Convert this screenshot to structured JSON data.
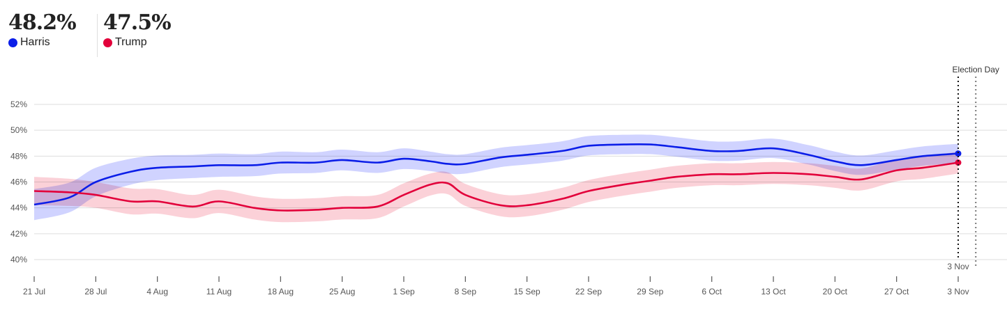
{
  "header": {
    "candidates": [
      {
        "name": "Harris",
        "value": "48.2%",
        "color": "#0b1ee8"
      },
      {
        "name": "Trump",
        "value": "47.5%",
        "color": "#e2003a"
      }
    ]
  },
  "chart_data": {
    "type": "line",
    "ylim": [
      40,
      52
    ],
    "yticks": [
      40,
      42,
      44,
      46,
      48,
      50,
      52
    ],
    "ytick_labels": [
      "40%",
      "42%",
      "44%",
      "46%",
      "48%",
      "50%",
      "52%"
    ],
    "xlim": [
      "21 Jul",
      "10 Nov"
    ],
    "xticks": [
      "21 Jul",
      "28 Jul",
      "4 Aug",
      "11 Aug",
      "18 Aug",
      "25 Aug",
      "1 Sep",
      "8 Sep",
      "15 Sep",
      "22 Sep",
      "29 Sep",
      "6 Oct",
      "13 Oct",
      "20 Oct",
      "27 Oct",
      "3 Nov"
    ],
    "grid": true,
    "annotations": [
      {
        "label": "Election Day",
        "date": "5 Nov",
        "style": "dotted"
      },
      {
        "label": "3 Nov",
        "date": "3 Nov",
        "style": "dotted"
      }
    ],
    "x": [
      "21 Jul",
      "25 Jul",
      "28 Jul",
      "1 Aug",
      "4 Aug",
      "8 Aug",
      "11 Aug",
      "15 Aug",
      "18 Aug",
      "22 Aug",
      "25 Aug",
      "29 Aug",
      "1 Sep",
      "4 Sep",
      "6 Sep",
      "8 Sep",
      "12 Sep",
      "15 Sep",
      "19 Sep",
      "22 Sep",
      "26 Sep",
      "29 Sep",
      "2 Oct",
      "6 Oct",
      "9 Oct",
      "13 Oct",
      "17 Oct",
      "20 Oct",
      "23 Oct",
      "27 Oct",
      "30 Oct",
      "3 Nov"
    ],
    "series": [
      {
        "name": "Harris",
        "color": "#0b1ee8",
        "band_color": "#c8ccff",
        "values": [
          44.25,
          44.8,
          46.0,
          46.8,
          47.1,
          47.2,
          47.3,
          47.3,
          47.5,
          47.5,
          47.7,
          47.5,
          47.8,
          47.6,
          47.4,
          47.4,
          47.9,
          48.1,
          48.4,
          48.8,
          48.9,
          48.9,
          48.7,
          48.4,
          48.4,
          48.6,
          48.1,
          47.6,
          47.3,
          47.7,
          48.0,
          48.2
        ],
        "margin": [
          1.2,
          1.15,
          1.1,
          1.0,
          0.95,
          0.9,
          0.9,
          0.85,
          0.85,
          0.8,
          0.8,
          0.8,
          0.8,
          0.75,
          0.75,
          0.75,
          0.75,
          0.75,
          0.75,
          0.75,
          0.75,
          0.75,
          0.75,
          0.75,
          0.75,
          0.75,
          0.75,
          0.75,
          0.75,
          0.75,
          0.75,
          0.75
        ]
      },
      {
        "name": "Trump",
        "color": "#e2003a",
        "band_color": "#fbc9d1",
        "values": [
          45.3,
          45.2,
          45.0,
          44.5,
          44.5,
          44.1,
          44.5,
          44.0,
          43.8,
          43.85,
          44.0,
          44.1,
          45.0,
          45.8,
          45.9,
          45.0,
          44.2,
          44.2,
          44.7,
          45.3,
          45.8,
          46.1,
          46.4,
          46.6,
          46.6,
          46.7,
          46.6,
          46.4,
          46.2,
          46.9,
          47.1,
          47.5
        ],
        "margin": [
          1.1,
          1.05,
          1.0,
          1.0,
          0.95,
          0.9,
          0.9,
          0.9,
          0.9,
          0.9,
          0.9,
          0.9,
          0.9,
          0.85,
          0.85,
          0.85,
          0.85,
          0.85,
          0.85,
          0.85,
          0.85,
          0.85,
          0.85,
          0.85,
          0.85,
          0.85,
          0.85,
          0.85,
          0.85,
          0.85,
          0.85,
          0.85
        ]
      }
    ]
  }
}
